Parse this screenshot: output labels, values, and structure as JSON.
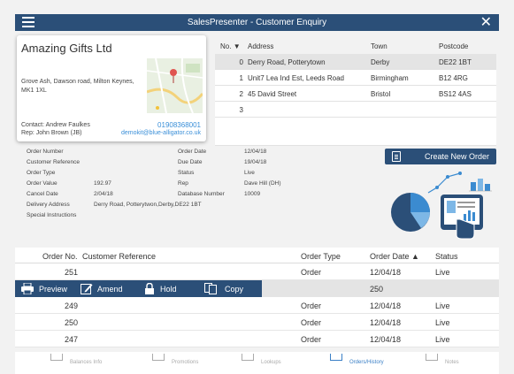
{
  "window": {
    "title": "SalesPresenter - Customer Enquiry",
    "close_glyph": "✕"
  },
  "customer": {
    "name": "Amazing Gifts Ltd",
    "address": "Grove Ash, Dawson road, Milton Keynes, MK1 1XL",
    "contact": "Contact: Andrew Faulkes",
    "rep": "Rep: John Brown (JB)",
    "phone": "01908368001",
    "email": "demokit@blue-alligator.co.uk"
  },
  "addresses": {
    "headers": {
      "no": "No.",
      "sort": "▼",
      "address": "Address",
      "town": "Town",
      "postcode": "Postcode"
    },
    "rows": [
      {
        "no": "0",
        "address": "Derry Road, Potterytown",
        "town": "Derby",
        "postcode": "DE22 1BT"
      },
      {
        "no": "1",
        "address": "Unit7 Lea Ind Est, Leeds Road",
        "town": "Birmingham",
        "postcode": "B12 4RG"
      },
      {
        "no": "2",
        "address": "45 David Street",
        "town": "Bristol",
        "postcode": "BS12 4AS"
      },
      {
        "no": "3",
        "address": "",
        "town": "",
        "postcode": ""
      }
    ]
  },
  "details": {
    "order_number_label": "Order Number",
    "customer_reference_label": "Customer Reference",
    "order_type_label": "Order Type",
    "order_value_label": "Order Value",
    "order_value": "192.97",
    "cancel_date_label": "Cancel Date",
    "cancel_date": "2/04/18",
    "delivery_address_label": "Delivery Address",
    "delivery_address": "Derry Road, Potterytwon,Derby,DE22 1BT",
    "special_instructions_label": "Special Instructions",
    "order_date_label": "Order Date",
    "order_date": "12/04/18",
    "due_date_label": "Due Date",
    "due_date": "19/04/18",
    "status_label": "Status",
    "status": "Live",
    "rep_label": "Rep",
    "rep": "Dave Hill (DH)",
    "database_number_label": "Database Number",
    "database_number": "10009"
  },
  "new_order_button": "Create New Order",
  "orders": {
    "headers": {
      "no": "Order No.",
      "reference": "Customer Reference",
      "type": "Order Type",
      "date": "Order Date",
      "sort": "▲",
      "status": "Status"
    },
    "rows": [
      {
        "no": "251",
        "type": "Order",
        "date": "12/04/18",
        "status": "Live"
      },
      {
        "no": "250",
        "type": "",
        "date": "",
        "status": ""
      },
      {
        "no": "249",
        "type": "Order",
        "date": "12/04/18",
        "status": "Live"
      },
      {
        "no": "250",
        "type": "Order",
        "date": "12/04/18",
        "status": "Live"
      },
      {
        "no": "247",
        "type": "Order",
        "date": "12/04/18",
        "status": "Live"
      }
    ],
    "actions": {
      "preview": "Preview",
      "amend": "Amend",
      "hold": "Hold",
      "copy": "Copy"
    }
  },
  "tabs": [
    {
      "label": "Balances Info",
      "icon": "balances-icon"
    },
    {
      "label": "Promotions",
      "icon": "promotions-icon"
    },
    {
      "label": "Lookups",
      "icon": "lookups-icon"
    },
    {
      "label": "Orders/History",
      "icon": "orders-history-icon"
    },
    {
      "label": "Notes",
      "icon": "notes-icon"
    }
  ],
  "colors": {
    "accent": "#2b4f78",
    "link": "#3a8fd8",
    "selected_row": "#e4e4e4"
  }
}
